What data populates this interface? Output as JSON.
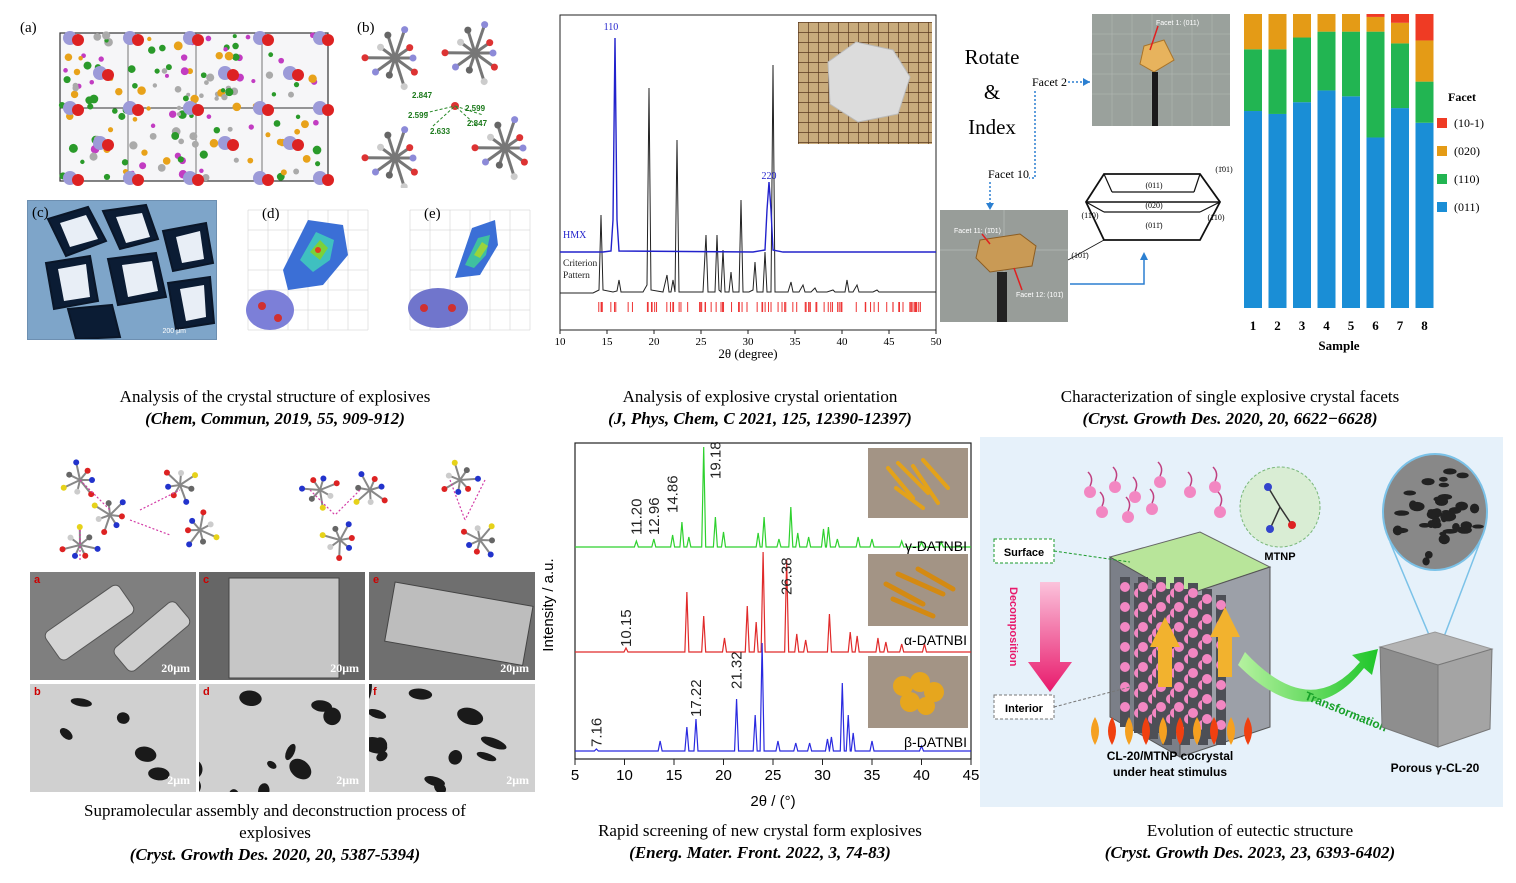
{
  "panel_letters": {
    "a": "(a)",
    "b": "(b)",
    "c": "(c)",
    "d": "(d)",
    "e": "(e)"
  },
  "hb_labels": [
    "2.847",
    "2.599",
    "2.633",
    "2.599",
    "2.847"
  ],
  "scale_c": "200 μm",
  "hmx_plot": {
    "peak_110": "110",
    "peak_220": "220",
    "series_hmx": "HMX",
    "series_criterion_1": "Criterion",
    "series_criterion_2": "Pattern",
    "xlabel": "2θ (degree)",
    "xticks": [
      "10",
      "15",
      "20",
      "25",
      "30",
      "35",
      "40",
      "45",
      "50"
    ]
  },
  "facet_fig": {
    "rotate_1": "Rotate",
    "rotate_2": "&",
    "rotate_3": "Index",
    "facet1": "Facet 1: (011)",
    "facet2": "Facet 2",
    "facet10": "Facet 10",
    "facet11": "Facet 11: (1̄01)",
    "facet12": "Facet 12: (101̄)",
    "box_faces": [
      "(011)",
      "(020)",
      "(011̄)",
      "(110)",
      "(1̄10)",
      "(1̄01)",
      "(101̄)"
    ]
  },
  "chart_data": {
    "type": "bar",
    "stacked": true,
    "categories": [
      "1",
      "2",
      "3",
      "4",
      "5",
      "6",
      "7",
      "8"
    ],
    "xlabel": "Sample",
    "legend_title": "Facet",
    "legend_position": "right",
    "series": [
      {
        "name": "(011)",
        "color": "#1a8ed6",
        "values": [
          0.67,
          0.66,
          0.7,
          0.74,
          0.72,
          0.58,
          0.68,
          0.63
        ]
      },
      {
        "name": "(110)",
        "color": "#22b552",
        "values": [
          0.21,
          0.22,
          0.22,
          0.2,
          0.22,
          0.36,
          0.22,
          0.14
        ]
      },
      {
        "name": "(020)",
        "color": "#e49b16",
        "values": [
          0.12,
          0.12,
          0.08,
          0.06,
          0.06,
          0.05,
          0.07,
          0.14
        ]
      },
      {
        "name": "(10-1)",
        "color": "#ef3b24",
        "values": [
          0.0,
          0.0,
          0.0,
          0.0,
          0.0,
          0.01,
          0.03,
          0.09
        ]
      }
    ],
    "ylim": [
      0,
      1
    ]
  },
  "datnbi_plot": {
    "ylabel": "Intensity / a.u.",
    "xlabel": "2θ / (°)",
    "xticks": [
      "5",
      "10",
      "15",
      "20",
      "25",
      "30",
      "35",
      "40",
      "45"
    ],
    "gamma_labels": [
      "11.20",
      "12.96",
      "14.86",
      "19.18"
    ],
    "alpha_labels": [
      "10.15",
      "26.38"
    ],
    "beta_labels": [
      "7.16",
      "17.22",
      "21.32"
    ],
    "gamma_name": "γ-DATNBI",
    "alpha_name": "α-DATNBI",
    "beta_name": "β-DATNBI"
  },
  "sem": {
    "letters": [
      "a",
      "c",
      "e",
      "b",
      "d",
      "f"
    ],
    "scales": [
      "20μm",
      "20μm",
      "20μm",
      "2μm",
      "2μm",
      "2μm"
    ]
  },
  "cocrystal": {
    "mtnp": "MTNP",
    "surface": "Surface",
    "interior": "Interior",
    "decomposition": "Decomposition",
    "transformation": "Transformation",
    "cocrystal_1": "CL-20/MTNP cocrystal",
    "cocrystal_2": "under heat stimulus",
    "porous": "Porous γ-CL-20"
  },
  "captions": {
    "c1_title": "Analysis of the crystal structure of explosives",
    "c1_cite": "(Chem, Commun, 2019, 55, 909-912)",
    "c2_title": "Analysis of explosive crystal orientation",
    "c2_cite": "(J, Phys, Chem, C 2021, 125, 12390-12397)",
    "c3_title": "Characterization of single explosive crystal facets",
    "c3_cite": "(Cryst. Growth Des. 2020, 20, 6622−6628)",
    "c4_title_1": "Supramolecular assembly and deconstruction process of",
    "c4_title_2": "explosives",
    "c4_cite": "(Cryst. Growth Des. 2020, 20, 5387-5394)",
    "c5_title": "Rapid screening of new crystal form explosives",
    "c5_cite": "(Energ. Mater. Front. 2022, 3, 74-83)",
    "c6_title": "Evolution of eutectic structure",
    "c6_cite": "(Cryst. Growth Des. 2023, 23, 6393-6402)"
  }
}
